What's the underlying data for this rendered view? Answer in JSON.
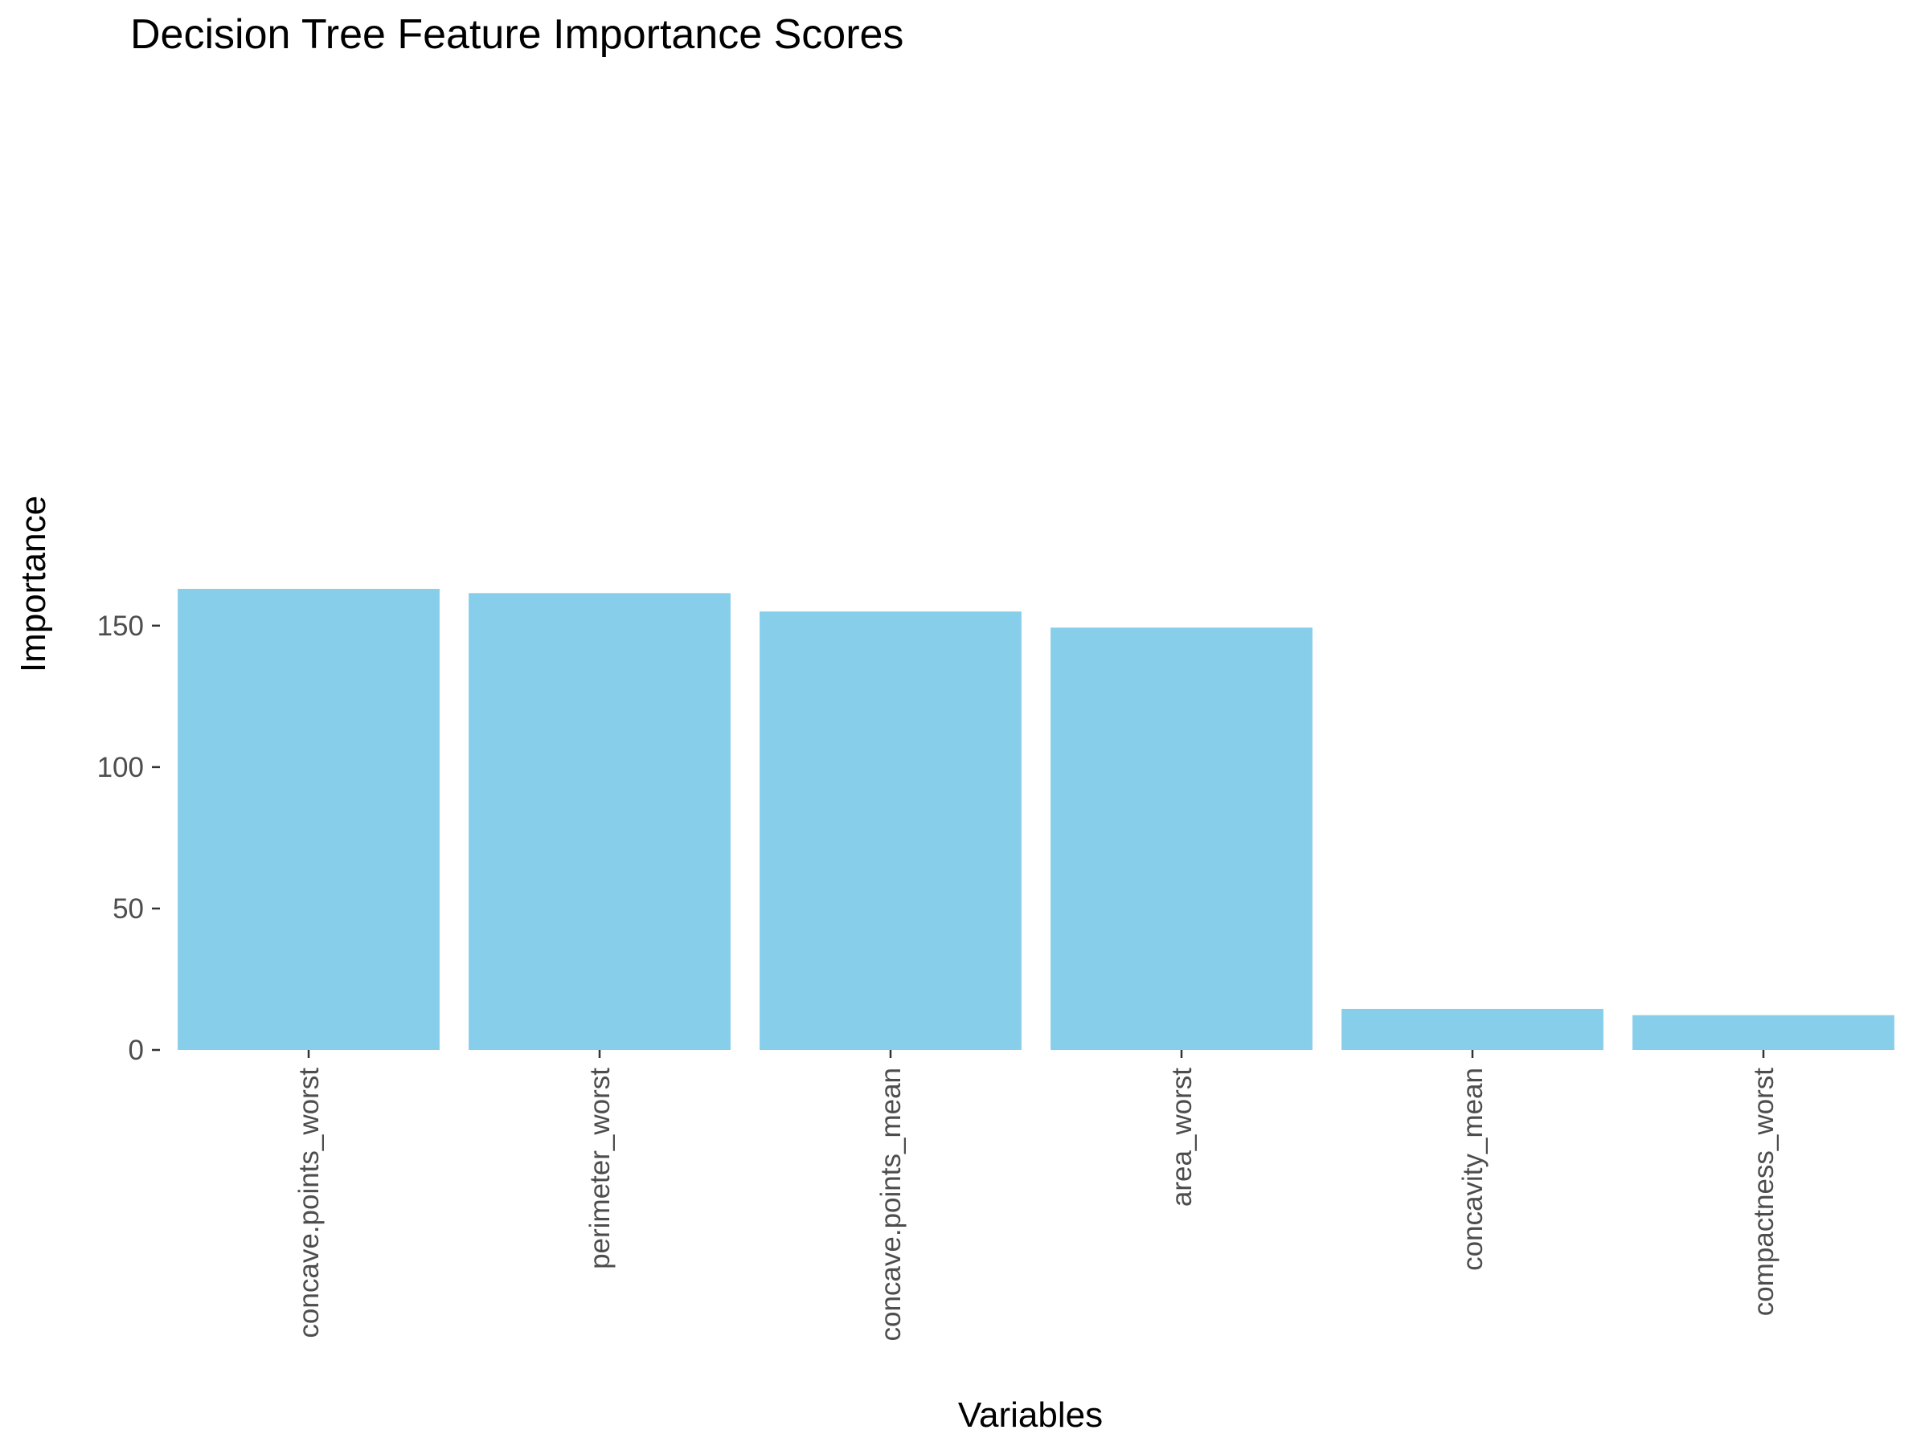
{
  "chart_data": {
    "type": "bar",
    "title": "Decision Tree Feature Importance Scores",
    "xlabel": "Variables",
    "ylabel": "Importance",
    "categories": [
      "concave.points_worst",
      "perimeter_worst",
      "concave.points_mean",
      "area_worst",
      "concavity_mean",
      "compactness_worst"
    ],
    "values": [
      163,
      161.5,
      155,
      149.3,
      14.5,
      12.3
    ],
    "ylim": [
      0,
      165
    ],
    "yticks": [
      0,
      50,
      100,
      150
    ],
    "grid": false,
    "legend": "none",
    "bar_color": "#87CEEA",
    "x_tick_rotation": "vertical"
  }
}
